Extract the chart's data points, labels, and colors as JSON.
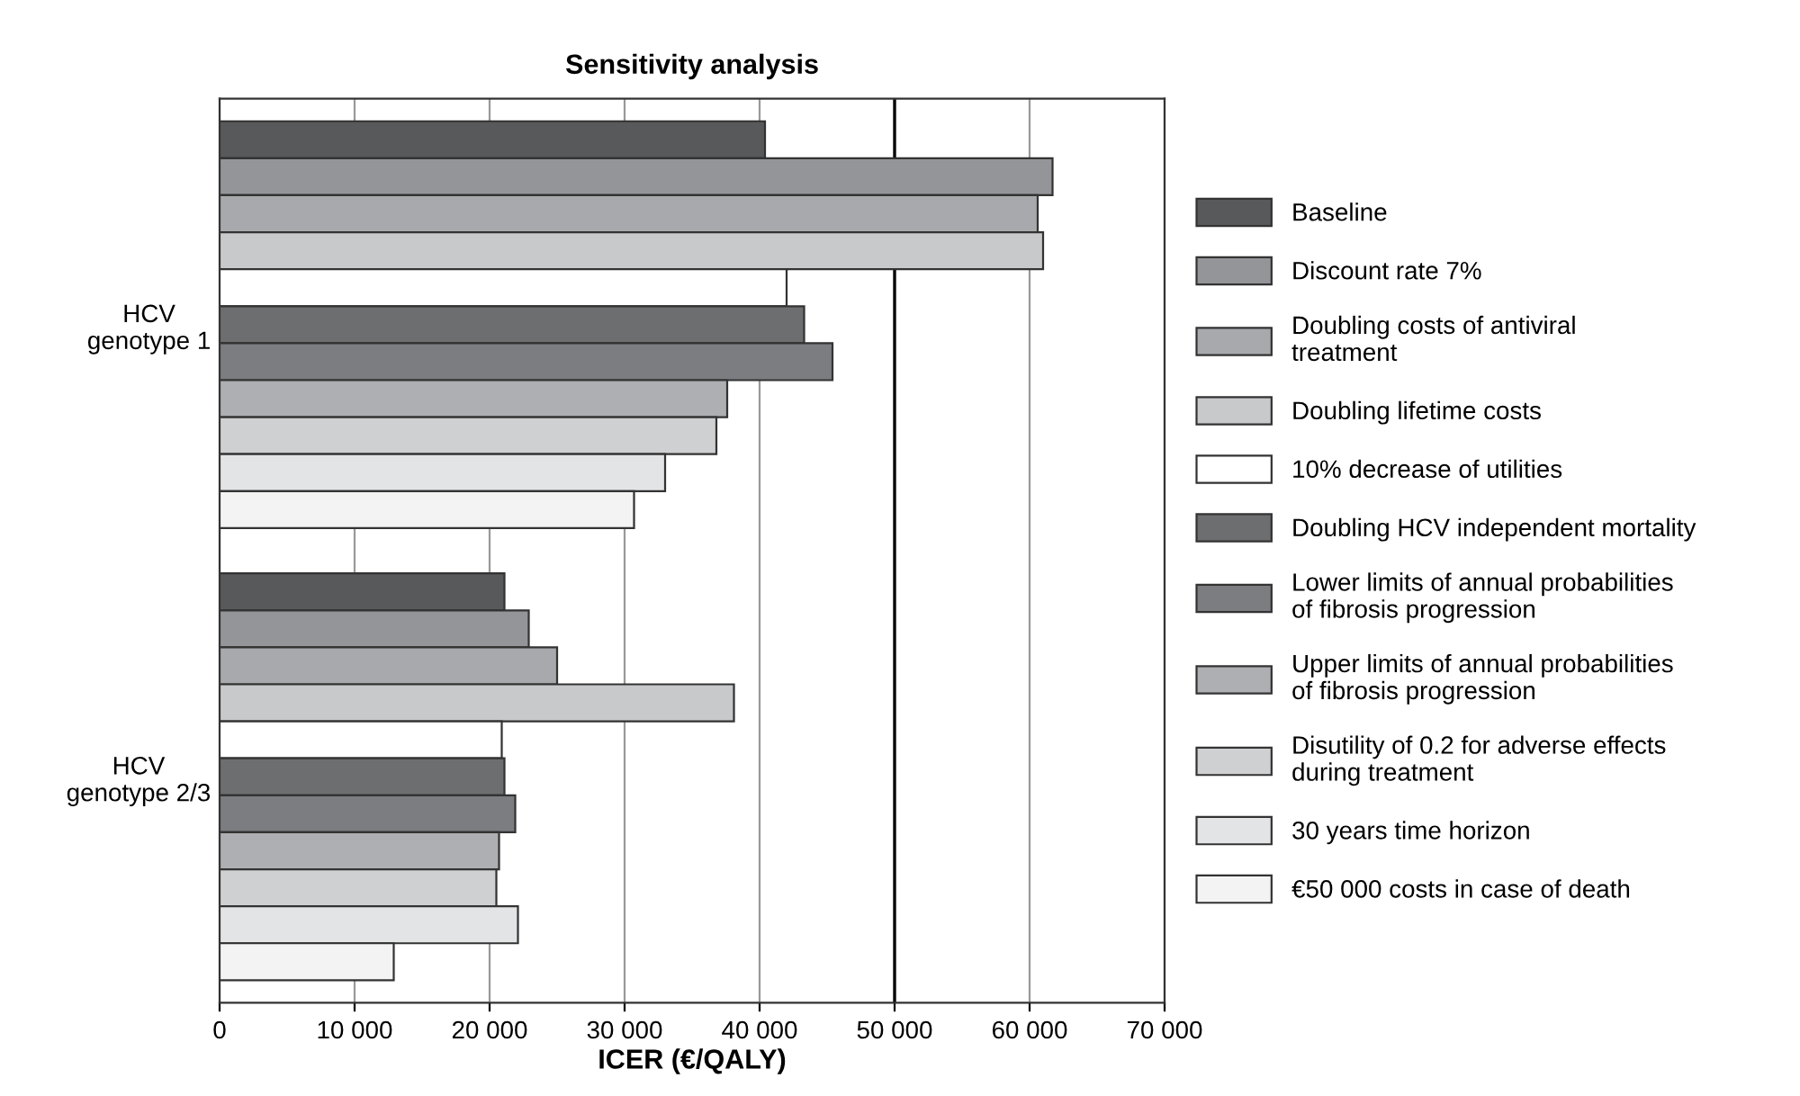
{
  "chart_data": {
    "type": "bar",
    "orientation": "horizontal",
    "title": "Sensitivity analysis",
    "xlabel": "ICER (€/QALY)",
    "categories": [
      "HCV\ngenotype 1",
      "HCV\ngenotype 2/3"
    ],
    "series": [
      {
        "name": "Baseline",
        "color": "#58595b",
        "values": [
          40400,
          21100
        ]
      },
      {
        "name": "Discount rate 7%",
        "color": "#939598",
        "values": [
          61700,
          22900
        ]
      },
      {
        "name": "Doubling costs of antiviral\ntreatment",
        "color": "#a7a9ac",
        "values": [
          60600,
          25000
        ]
      },
      {
        "name": "Doubling lifetime costs",
        "color": "#c8c9cb",
        "values": [
          61000,
          38100
        ]
      },
      {
        "name": "10% decrease of utilities",
        "color": "#ffffff",
        "values": [
          42000,
          20900
        ]
      },
      {
        "name": "Doubling HCV independent mortality",
        "color": "#6d6e70",
        "values": [
          43300,
          21100
        ]
      },
      {
        "name": "Lower limits of annual probabilities\nof fibrosis progression",
        "color": "#7c7d80",
        "values": [
          45400,
          21900
        ]
      },
      {
        "name": "Upper limits of annual probabilities\nof fibrosis progression",
        "color": "#aeafb2",
        "values": [
          37600,
          20700
        ]
      },
      {
        "name": "Disutility of 0.2 for adverse effects\nduring treatment",
        "color": "#cfd0d2",
        "values": [
          36800,
          20500
        ]
      },
      {
        "name": "30 years time horizon",
        "color": "#e3e4e6",
        "values": [
          33000,
          22100
        ]
      },
      {
        "name": "€50 000 costs in case of death",
        "color": "#f3f3f4",
        "values": [
          30700,
          12900
        ]
      }
    ],
    "xlim": [
      0,
      70000
    ],
    "xticks": [
      0,
      {
        "value": 10000,
        "label": "10 000"
      },
      {
        "value": 20000,
        "label": "20 000"
      },
      {
        "value": 30000,
        "label": "30 000"
      },
      {
        "value": 40000,
        "label": "40 000"
      },
      {
        "value": 50000,
        "label": "50 000"
      },
      {
        "value": 60000,
        "label": "60 000"
      },
      {
        "value": 70000,
        "label": "70 000"
      }
    ],
    "ref_lines": [
      {
        "axis": "x",
        "value": 50000,
        "color": "#000000"
      }
    ],
    "grid": "x",
    "legend": "right"
  }
}
